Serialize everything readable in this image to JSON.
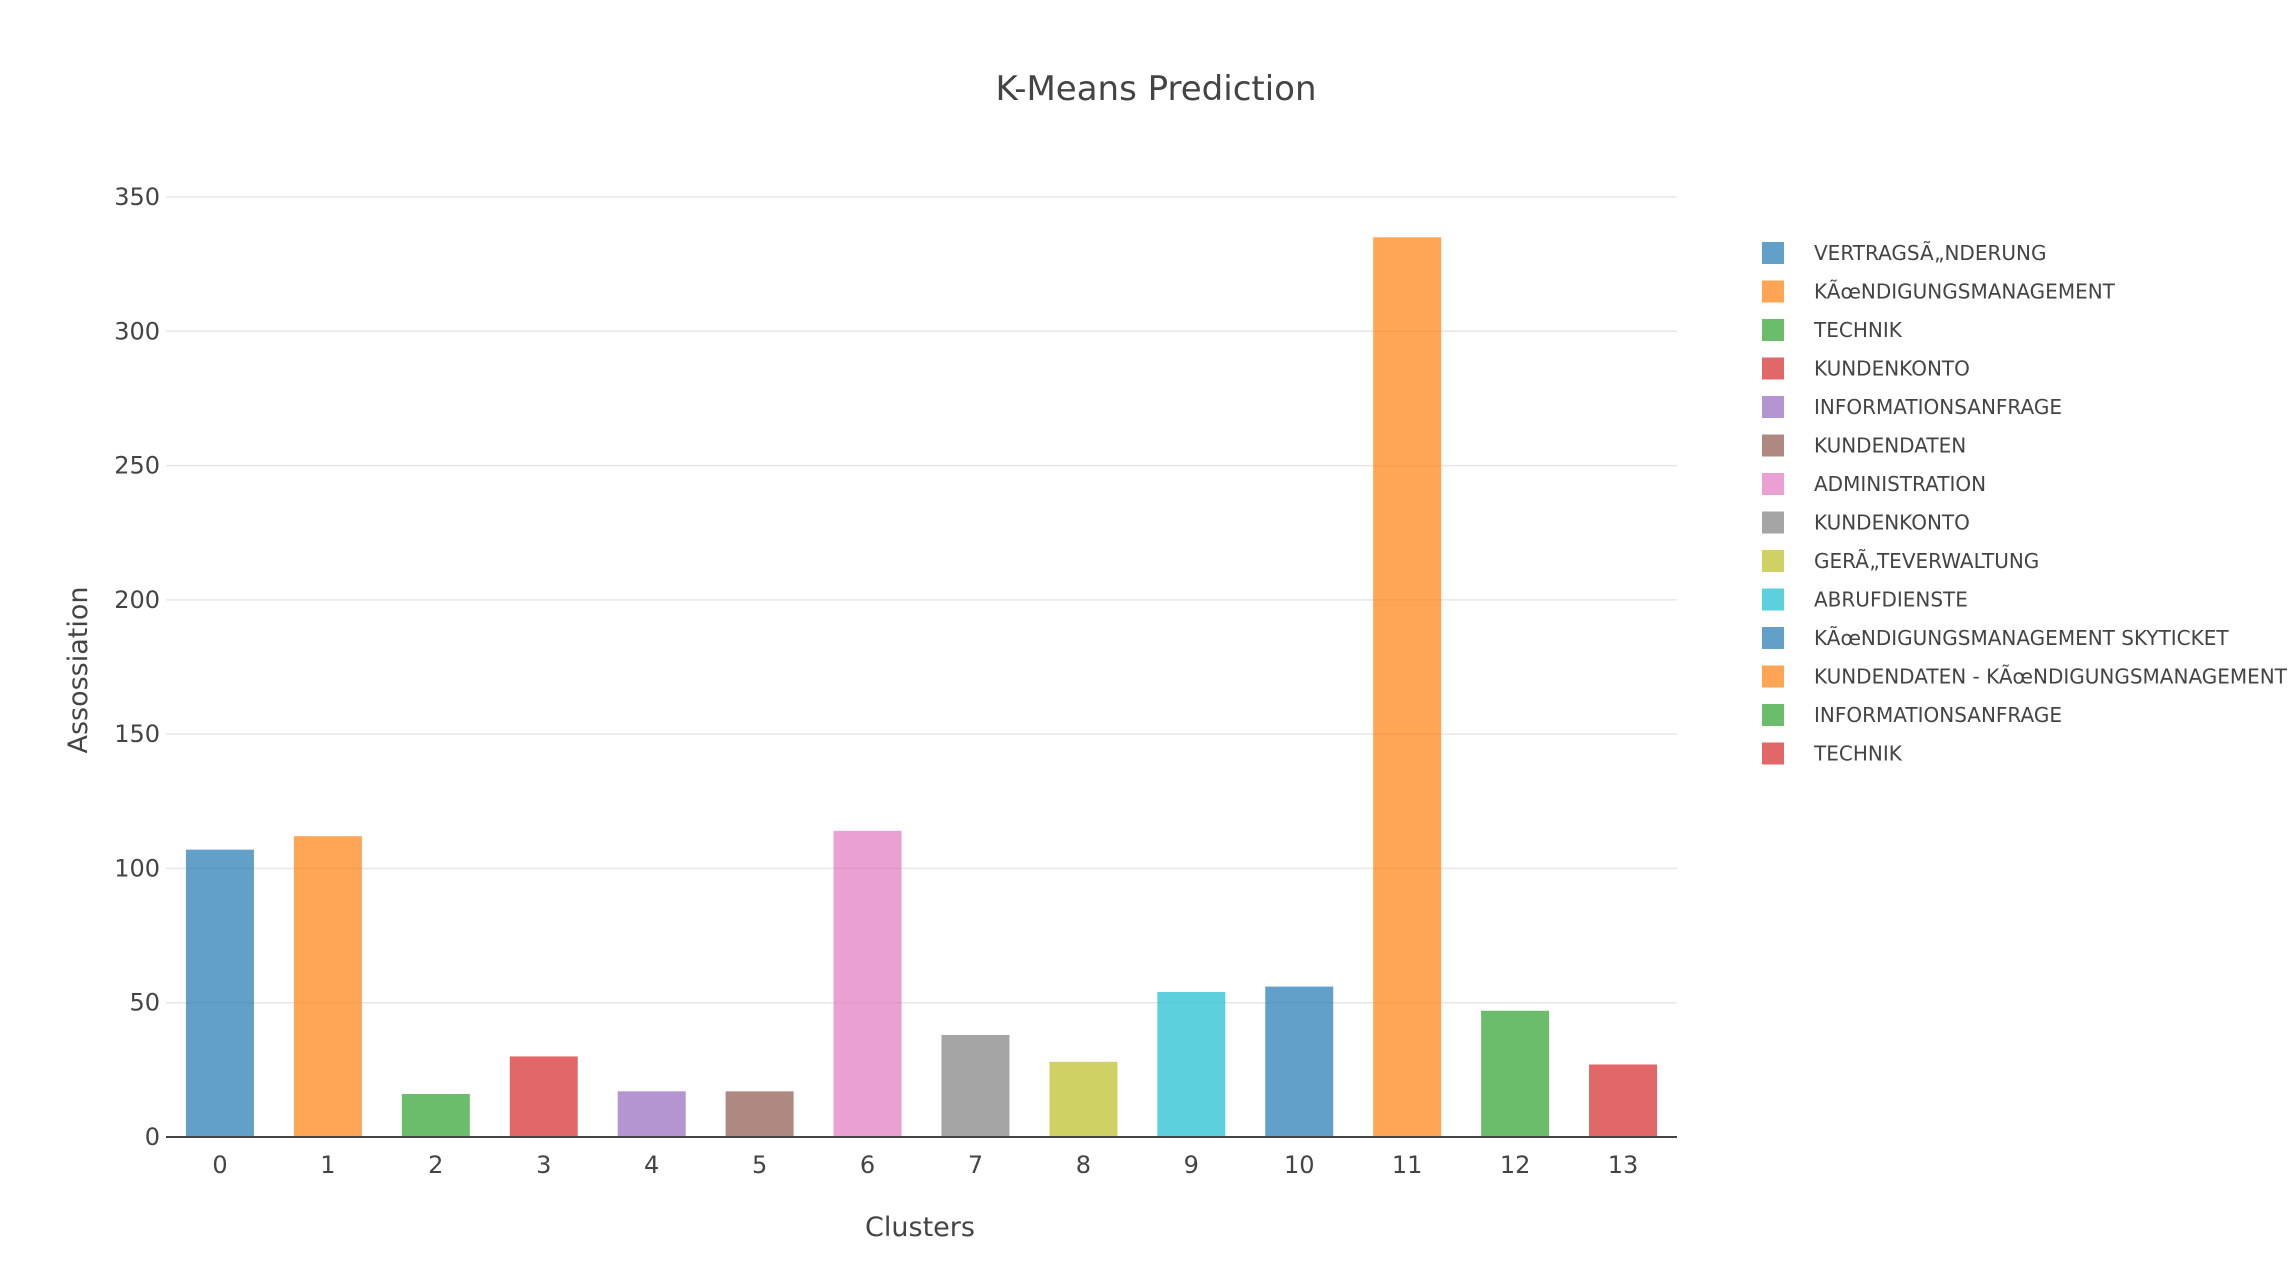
{
  "chart_data": {
    "type": "bar",
    "title": "K-Means Prediction",
    "xlabel": "Clusters",
    "ylabel": "Assossiation",
    "categories": [
      "0",
      "1",
      "2",
      "3",
      "4",
      "5",
      "6",
      "7",
      "8",
      "9",
      "10",
      "11",
      "12",
      "13"
    ],
    "values": [
      107,
      112,
      16,
      30,
      17,
      17,
      114,
      38,
      28,
      54,
      56,
      335,
      47,
      27
    ],
    "series_names": [
      "VERTRAGSÃ„NDERUNG",
      "KÃœNDIGUNGSMANAGEMENT",
      "TECHNIK",
      "KUNDENKONTO",
      "INFORMATIONSANFRAGE",
      "KUNDENDATEN",
      "ADMINISTRATION",
      "KUNDENKONTO",
      "GERÃ„TEVERWALTUNG",
      "ABRUFDIENSTE",
      "KÃœNDIGUNGSMANAGEMENT SKYTICKET",
      " KUNDENDATEN - KÃœNDIGUNGSMANAGEMENT",
      "INFORMATIONSANFRAGE",
      "TECHNIK"
    ],
    "colors": [
      "#1f77b4",
      "#ff7f0e",
      "#2ca02c",
      "#d62728",
      "#9467bd",
      "#8c564b",
      "#e377c2",
      "#7f7f7f",
      "#bcbd22",
      "#17becf",
      "#1f77b4",
      "#ff7f0e",
      "#2ca02c",
      "#d62728"
    ],
    "ylim": [
      0,
      350
    ],
    "yticks": [
      0,
      50,
      100,
      150,
      200,
      250,
      300,
      350
    ],
    "grid": true,
    "legend_position": "right"
  }
}
